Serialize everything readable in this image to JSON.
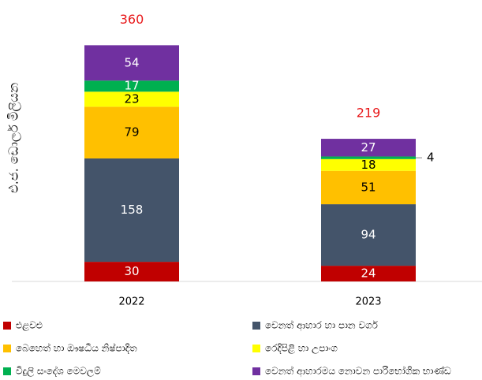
{
  "chart_data": {
    "type": "stacked_bar",
    "y_label": "එ.ජ. ඩොලර් මිලියන",
    "categories": [
      "2022",
      "2023"
    ],
    "totals": [
      360,
      219
    ],
    "totals_color": "#e8191b",
    "ylim": [
      0,
      400
    ],
    "series": [
      {
        "name": "එළවළු",
        "color": "#c00000",
        "values": [
          30,
          24
        ]
      },
      {
        "name": "වෙනත් ආහාර හා පාන වර්ග",
        "color": "#44546a",
        "values": [
          158,
          94
        ]
      },
      {
        "name": "බෙහෙත් හා ඖෂධීය නිෂ්පාදිත",
        "color": "#ffc000",
        "values": [
          79,
          51
        ]
      },
      {
        "name": "රෙදිපිළි හා උපාංග",
        "color": "#ffff00",
        "values": [
          23,
          18
        ]
      },
      {
        "name": "විදුලි සංදේශ මෙවලම්",
        "color": "#00b050",
        "values": [
          17,
          4
        ]
      },
      {
        "name": "වෙනත් ආහාරමය නොවන පාරිභෝගික භාණ්ඩ",
        "color": "#7030a0",
        "values": [
          54,
          27
        ]
      }
    ],
    "legend": "bottom"
  }
}
